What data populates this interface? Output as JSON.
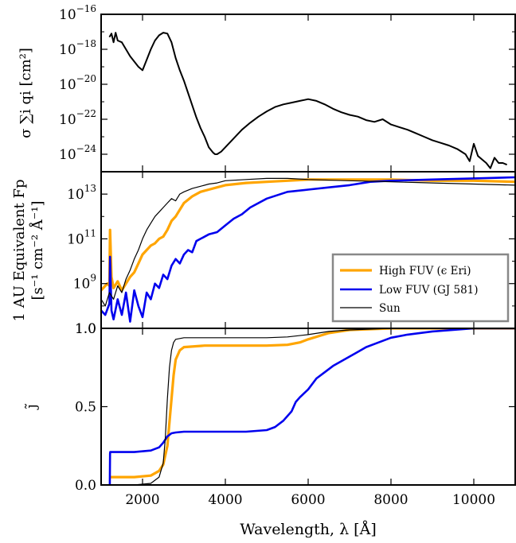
{
  "chart_data": [
    {
      "type": "line",
      "panel": "top",
      "ylabel": "σ ∑i qi [cm²]",
      "yscale": "log",
      "ylim": [
        1e-25,
        1e-16
      ],
      "xlim": [
        1000,
        11000
      ],
      "yticks": [
        {
          "base": "10",
          "exp": "−16"
        },
        {
          "base": "10",
          "exp": "−18"
        },
        {
          "base": "10",
          "exp": "−20"
        },
        {
          "base": "10",
          "exp": "−22"
        },
        {
          "base": "10",
          "exp": "−24"
        }
      ],
      "series": [
        {
          "color": "#000000",
          "x": [
            1200,
            1250,
            1300,
            1350,
            1400,
            1500,
            1600,
            1700,
            1800,
            1900,
            2000,
            2100,
            2200,
            2300,
            2400,
            2500,
            2600,
            2700,
            2800,
            2900,
            3000,
            3100,
            3200,
            3300,
            3400,
            3500,
            3600,
            3700,
            3750,
            3800,
            3900,
            4000,
            4200,
            4400,
            4600,
            4800,
            5000,
            5200,
            5400,
            5600,
            5800,
            6000,
            6200,
            6400,
            6600,
            6800,
            7000,
            7200,
            7400,
            7600,
            7800,
            8000,
            8200,
            8400,
            8600,
            8800,
            9000,
            9200,
            9400,
            9600,
            9800,
            9900,
            10000,
            10100,
            10200,
            10300,
            10400,
            10500,
            10600,
            10700,
            10800
          ],
          "y": [
            -17.3,
            -17.1,
            -17.6,
            -17.05,
            -17.5,
            -17.6,
            -18.0,
            -18.4,
            -18.7,
            -19.0,
            -19.2,
            -18.6,
            -18.0,
            -17.5,
            -17.2,
            -17.05,
            -17.1,
            -17.6,
            -18.5,
            -19.2,
            -19.8,
            -20.5,
            -21.2,
            -21.9,
            -22.5,
            -23.0,
            -23.6,
            -23.9,
            -24.0,
            -24.0,
            -23.85,
            -23.6,
            -23.1,
            -22.6,
            -22.2,
            -21.85,
            -21.55,
            -21.3,
            -21.15,
            -21.05,
            -20.95,
            -20.85,
            -20.95,
            -21.15,
            -21.4,
            -21.6,
            -21.75,
            -21.85,
            -22.05,
            -22.15,
            -22.0,
            -22.3,
            -22.45,
            -22.6,
            -22.8,
            -23.0,
            -23.2,
            -23.35,
            -23.5,
            -23.7,
            -24.0,
            -24.4,
            -23.4,
            -24.1,
            -24.3,
            -24.5,
            -24.8,
            -24.2,
            -24.5,
            -24.5,
            -24.6
          ]
        }
      ]
    },
    {
      "type": "line",
      "panel": "middle",
      "ylabel_lines": [
        "1 AU Equivalent Fp",
        "[s⁻¹ cm⁻² Å⁻¹]"
      ],
      "yscale": "log",
      "ylim": [
        10000000.0,
        100000000000000.0
      ],
      "xlim": [
        1000,
        11000
      ],
      "yticks": [
        {
          "base": "10",
          "exp": "13"
        },
        {
          "base": "10",
          "exp": "11"
        },
        {
          "base": "10",
          "exp": "9"
        },
        {
          "base": "1.0",
          "exp": ""
        }
      ],
      "legend": "right",
      "series": [
        {
          "name": "High FUV (ϵ Eri)",
          "color": "#FFA500",
          "width": 3.2,
          "x": [
            1000,
            1100,
            1150,
            1200,
            1216,
            1250,
            1300,
            1400,
            1500,
            1600,
            1700,
            1800,
            1900,
            2000,
            2100,
            2200,
            2300,
            2400,
            2500,
            2600,
            2700,
            2800,
            2900,
            3000,
            3200,
            3400,
            3600,
            3800,
            4000,
            4500,
            5000,
            5500,
            6000,
            7000,
            8000,
            9000,
            10000,
            11000
          ],
          "y": [
            8.7,
            8.9,
            9.0,
            8.9,
            11.4,
            9.3,
            8.8,
            9.1,
            8.7,
            9.0,
            9.3,
            9.5,
            9.9,
            10.3,
            10.5,
            10.7,
            10.8,
            11.0,
            11.1,
            11.4,
            11.8,
            12.0,
            12.3,
            12.6,
            12.9,
            13.1,
            13.2,
            13.3,
            13.4,
            13.5,
            13.55,
            13.6,
            13.65,
            13.65,
            13.65,
            13.6,
            13.6,
            13.55
          ]
        },
        {
          "name": "Low FUV (GJ 581)",
          "color": "#0000EE",
          "width": 2.6,
          "x": [
            1000,
            1100,
            1200,
            1216,
            1250,
            1300,
            1400,
            1500,
            1600,
            1700,
            1800,
            1900,
            2000,
            2100,
            2200,
            2300,
            2400,
            2500,
            2600,
            2700,
            2800,
            2900,
            3000,
            3100,
            3200,
            3300,
            3400,
            3600,
            3800,
            4000,
            4200,
            4400,
            4600,
            5000,
            5500,
            6000,
            6500,
            7000,
            7500,
            8000,
            9000,
            10000,
            11000
          ],
          "y": [
            7.8,
            7.6,
            8.1,
            10.2,
            7.8,
            7.4,
            8.3,
            7.6,
            8.6,
            7.3,
            8.7,
            8.0,
            7.5,
            8.6,
            8.3,
            9.0,
            8.8,
            9.4,
            9.2,
            9.8,
            10.1,
            9.9,
            10.3,
            10.5,
            10.4,
            10.9,
            11.0,
            11.2,
            11.3,
            11.6,
            11.9,
            12.1,
            12.4,
            12.8,
            13.1,
            13.2,
            13.3,
            13.4,
            13.55,
            13.6,
            13.65,
            13.7,
            13.75
          ]
        },
        {
          "name": "Sun",
          "color": "#000000",
          "width": 1.2,
          "x": [
            1000,
            1100,
            1200,
            1300,
            1400,
            1500,
            1600,
            1700,
            1800,
            1900,
            2000,
            2100,
            2200,
            2300,
            2400,
            2500,
            2600,
            2700,
            2800,
            2900,
            3000,
            3200,
            3400,
            3600,
            3800,
            4000,
            4500,
            5000,
            5500,
            6000,
            7000,
            8000,
            9000,
            10000,
            11000
          ],
          "y": [
            8.3,
            8.0,
            8.6,
            8.3,
            8.9,
            8.6,
            9.2,
            9.6,
            10.1,
            10.5,
            11.0,
            11.4,
            11.7,
            12.0,
            12.2,
            12.4,
            12.6,
            12.8,
            12.7,
            13.0,
            13.1,
            13.25,
            13.35,
            13.45,
            13.5,
            13.6,
            13.65,
            13.7,
            13.7,
            13.65,
            13.6,
            13.55,
            13.5,
            13.45,
            13.4
          ]
        }
      ]
    },
    {
      "type": "line",
      "panel": "bottom",
      "ylabel": "j̃",
      "xlabel": "Wavelength, λ [Å]",
      "ylim": [
        0,
        1
      ],
      "xlim": [
        1000,
        11000
      ],
      "yticks": [
        "1.0",
        "0.5",
        "0.0"
      ],
      "xticks": [
        "2000",
        "4000",
        "6000",
        "8000",
        "10000"
      ],
      "series": [
        {
          "color": "#FFA500",
          "width": 3.2,
          "x": [
            1200,
            1400,
            1800,
            2200,
            2400,
            2500,
            2600,
            2700,
            2750,
            2800,
            2900,
            3000,
            3500,
            4000,
            5000,
            5500,
            5800,
            6000,
            6500,
            7000,
            8000,
            9000,
            10000,
            11000
          ],
          "y": [
            0.05,
            0.05,
            0.05,
            0.06,
            0.09,
            0.13,
            0.25,
            0.55,
            0.7,
            0.8,
            0.86,
            0.88,
            0.89,
            0.89,
            0.89,
            0.895,
            0.91,
            0.93,
            0.97,
            0.99,
            1.0,
            1.0,
            1.0,
            1.0
          ]
        },
        {
          "color": "#0000EE",
          "width": 2.6,
          "x": [
            1200,
            1210,
            1216,
            1220,
            1400,
            1800,
            2200,
            2400,
            2500,
            2600,
            2700,
            2800,
            3000,
            3500,
            4000,
            4500,
            5000,
            5200,
            5400,
            5600,
            5700,
            5800,
            6000,
            6200,
            6400,
            6600,
            6800,
            7000,
            7200,
            7400,
            7600,
            8000,
            8400,
            9000,
            9500,
            10000,
            11000
          ],
          "y": [
            0.0,
            0.0,
            0.2,
            0.21,
            0.21,
            0.21,
            0.22,
            0.24,
            0.27,
            0.31,
            0.33,
            0.335,
            0.34,
            0.34,
            0.34,
            0.34,
            0.35,
            0.37,
            0.41,
            0.47,
            0.53,
            0.56,
            0.61,
            0.68,
            0.72,
            0.76,
            0.79,
            0.82,
            0.85,
            0.88,
            0.9,
            0.94,
            0.96,
            0.98,
            0.99,
            1.0,
            1.0
          ]
        },
        {
          "color": "#000000",
          "width": 1.2,
          "x": [
            1200,
            1800,
            2200,
            2400,
            2500,
            2550,
            2600,
            2650,
            2700,
            2750,
            2800,
            3000,
            3500,
            4000,
            5000,
            5500,
            6000,
            6500,
            7000,
            8000,
            9000,
            10000,
            11000
          ],
          "y": [
            0.0,
            0.0,
            0.01,
            0.05,
            0.14,
            0.3,
            0.55,
            0.75,
            0.86,
            0.91,
            0.93,
            0.94,
            0.94,
            0.94,
            0.94,
            0.945,
            0.96,
            0.98,
            0.99,
            1.0,
            1.0,
            1.0,
            1.0
          ]
        }
      ]
    }
  ]
}
